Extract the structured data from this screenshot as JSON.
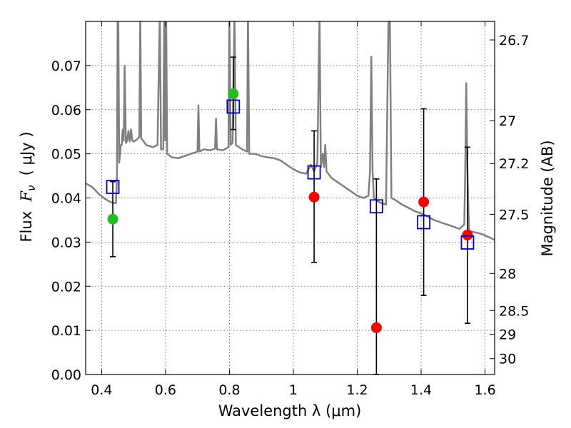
{
  "chart_data": {
    "type": "scatter",
    "xlabel": "Wavelength  λ (μm)",
    "ylabel_prefix": "Flux  ",
    "ylabel_symbol": "F",
    "ylabel_subscript": "ν",
    "ylabel_suffix": "  ( μJy )",
    "right_ylabel": "Magnitude (AB)",
    "xlim": [
      0.35,
      1.63
    ],
    "ylim": [
      0.0,
      0.08
    ],
    "grid": true,
    "x_ticks": [
      0.4,
      0.6,
      0.8,
      1.0,
      1.2,
      1.4,
      1.6
    ],
    "x_tick_labels": [
      "0.4",
      "0.6",
      "0.8",
      "1",
      "1.2",
      "1.4",
      "1.6"
    ],
    "y_ticks": [
      0.0,
      0.01,
      0.02,
      0.03,
      0.04,
      0.05,
      0.06,
      0.07
    ],
    "y_tick_labels": [
      "0.00",
      "0.01",
      "0.02",
      "0.03",
      "0.04",
      "0.05",
      "0.06",
      "0.07"
    ],
    "right_ticks": [
      {
        "label": "26.7",
        "flux": 0.0758
      },
      {
        "label": "27",
        "flux": 0.0575
      },
      {
        "label": "27.2",
        "flux": 0.0478
      },
      {
        "label": "27.5",
        "flux": 0.0363
      },
      {
        "label": "28",
        "flux": 0.0229
      },
      {
        "label": "28.5",
        "flux": 0.0145
      },
      {
        "label": "29",
        "flux": 0.0091
      },
      {
        "label": "30",
        "flux": 0.0036
      }
    ],
    "colors": {
      "model": "#808080",
      "detection": "#1fbf1f",
      "estimate": "#ff0000",
      "model_photometry": "#0000cc",
      "errorbar": "#000000",
      "grid": "#555555"
    },
    "series": [
      {
        "marker": "circle",
        "color": "#1fbf1f",
        "points": [
          {
            "x": 0.435,
            "y": 0.0352,
            "err_lo": 0.0267,
            "err_hi": 0.0437
          },
          {
            "x": 0.812,
            "y": 0.0636,
            "err_lo": 0.0555,
            "err_hi": 0.0719
          }
        ]
      },
      {
        "marker": "circle",
        "color": "#ff0000",
        "points": [
          {
            "x": 1.065,
            "y": 0.0402,
            "err_lo": 0.0254,
            "err_hi": 0.0552
          },
          {
            "x": 1.26,
            "y": 0.0106,
            "err_lo": 0.0,
            "err_hi": 0.0443
          },
          {
            "x": 1.408,
            "y": 0.0391,
            "err_lo": 0.0179,
            "err_hi": 0.0602
          },
          {
            "x": 1.545,
            "y": 0.0316,
            "err_lo": 0.0116,
            "err_hi": 0.0515
          }
        ]
      },
      {
        "marker": "square",
        "color": "#0000cc",
        "points": [
          {
            "x": 0.435,
            "y": 0.0425
          },
          {
            "x": 0.812,
            "y": 0.0607
          },
          {
            "x": 1.065,
            "y": 0.0458
          },
          {
            "x": 1.26,
            "y": 0.0381
          },
          {
            "x": 1.408,
            "y": 0.0345
          },
          {
            "x": 1.545,
            "y": 0.0299
          }
        ]
      }
    ],
    "model_spectrum": {
      "color": "#808080",
      "points": [
        [
          0.35,
          0.0433
        ],
        [
          0.37,
          0.0425
        ],
        [
          0.39,
          0.041
        ],
        [
          0.41,
          0.0398
        ],
        [
          0.43,
          0.039
        ],
        [
          0.445,
          0.0388
        ],
        [
          0.448,
          0.045
        ],
        [
          0.45,
          0.082
        ],
        [
          0.452,
          0.082
        ],
        [
          0.455,
          0.048
        ],
        [
          0.46,
          0.052
        ],
        [
          0.463,
          0.052
        ],
        [
          0.466,
          0.0555
        ],
        [
          0.469,
          0.053
        ],
        [
          0.472,
          0.07
        ],
        [
          0.476,
          0.0525
        ],
        [
          0.48,
          0.053
        ],
        [
          0.484,
          0.0552
        ],
        [
          0.488,
          0.0528
        ],
        [
          0.492,
          0.0555
        ],
        [
          0.496,
          0.053
        ],
        [
          0.5,
          0.0528
        ],
        [
          0.51,
          0.0532
        ],
        [
          0.518,
          0.0538
        ],
        [
          0.521,
          0.082
        ],
        [
          0.524,
          0.0535
        ],
        [
          0.54,
          0.052
        ],
        [
          0.56,
          0.0515
        ],
        [
          0.575,
          0.052
        ],
        [
          0.582,
          0.082
        ],
        [
          0.586,
          0.051
        ],
        [
          0.593,
          0.051
        ],
        [
          0.596,
          0.082
        ],
        [
          0.599,
          0.053
        ],
        [
          0.602,
          0.082
        ],
        [
          0.605,
          0.05
        ],
        [
          0.62,
          0.0492
        ],
        [
          0.64,
          0.049
        ],
        [
          0.66,
          0.0495
        ],
        [
          0.68,
          0.05
        ],
        [
          0.7,
          0.0505
        ],
        [
          0.703,
          0.061
        ],
        [
          0.706,
          0.0505
        ],
        [
          0.72,
          0.051
        ],
        [
          0.74,
          0.0508
        ],
        [
          0.755,
          0.0512
        ],
        [
          0.758,
          0.058
        ],
        [
          0.761,
          0.051
        ],
        [
          0.78,
          0.0508
        ],
        [
          0.797,
          0.0515
        ],
        [
          0.8,
          0.082
        ],
        [
          0.804,
          0.052
        ],
        [
          0.81,
          0.0525
        ],
        [
          0.816,
          0.082
        ],
        [
          0.82,
          0.052
        ],
        [
          0.84,
          0.051
        ],
        [
          0.855,
          0.0505
        ],
        [
          0.858,
          0.082
        ],
        [
          0.862,
          0.05
        ],
        [
          0.88,
          0.05
        ],
        [
          0.9,
          0.0495
        ],
        [
          0.92,
          0.0492
        ],
        [
          0.94,
          0.049
        ],
        [
          0.96,
          0.0485
        ],
        [
          0.98,
          0.0475
        ],
        [
          1.0,
          0.0465
        ],
        [
          1.02,
          0.0458
        ],
        [
          1.04,
          0.0455
        ],
        [
          1.055,
          0.0475
        ],
        [
          1.065,
          0.046
        ],
        [
          1.075,
          0.048
        ],
        [
          1.082,
          0.082
        ],
        [
          1.086,
          0.047
        ],
        [
          1.092,
          0.05
        ],
        [
          1.096,
          0.047
        ],
        [
          1.1,
          0.052
        ],
        [
          1.104,
          0.046
        ],
        [
          1.12,
          0.0445
        ],
        [
          1.14,
          0.0435
        ],
        [
          1.16,
          0.0425
        ],
        [
          1.18,
          0.0415
        ],
        [
          1.2,
          0.0405
        ],
        [
          1.22,
          0.04
        ],
        [
          1.235,
          0.0405
        ],
        [
          1.24,
          0.046
        ],
        [
          1.244,
          0.072
        ],
        [
          1.248,
          0.046
        ],
        [
          1.252,
          0.04
        ],
        [
          1.27,
          0.039
        ],
        [
          1.29,
          0.0385
        ],
        [
          1.298,
          0.082
        ],
        [
          1.302,
          0.082
        ],
        [
          1.307,
          0.04
        ],
        [
          1.32,
          0.0395
        ],
        [
          1.34,
          0.0385
        ],
        [
          1.36,
          0.0378
        ],
        [
          1.38,
          0.037
        ],
        [
          1.4,
          0.0365
        ],
        [
          1.42,
          0.0358
        ],
        [
          1.44,
          0.035
        ],
        [
          1.46,
          0.0345
        ],
        [
          1.48,
          0.034
        ],
        [
          1.5,
          0.0335
        ],
        [
          1.52,
          0.033
        ],
        [
          1.535,
          0.034
        ],
        [
          1.538,
          0.046
        ],
        [
          1.541,
          0.066
        ],
        [
          1.545,
          0.046
        ],
        [
          1.55,
          0.0325
        ],
        [
          1.57,
          0.0322
        ],
        [
          1.59,
          0.0318
        ],
        [
          1.61,
          0.0312
        ],
        [
          1.63,
          0.0305
        ]
      ]
    }
  }
}
